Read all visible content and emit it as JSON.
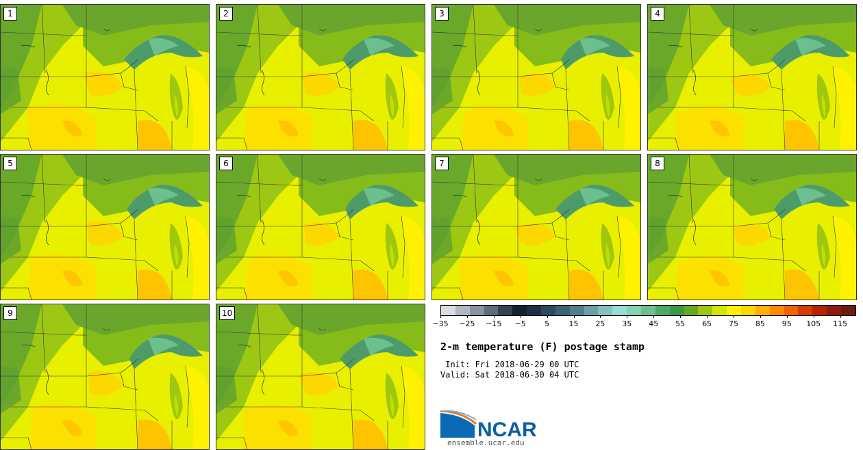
{
  "panels": [
    {
      "label": "1"
    },
    {
      "label": "2"
    },
    {
      "label": "3"
    },
    {
      "label": "4"
    },
    {
      "label": "5"
    },
    {
      "label": "6"
    },
    {
      "label": "7"
    },
    {
      "label": "8"
    },
    {
      "label": "9"
    },
    {
      "label": "10"
    }
  ],
  "colorbar": {
    "colors": [
      "#d9dde3",
      "#b3b9c2",
      "#8a93a0",
      "#5f6b7c",
      "#344155",
      "#141f33",
      "#1d2f45",
      "#2c4a5e",
      "#3d6475",
      "#4f7f8c",
      "#6aa0a7",
      "#86bfbf",
      "#9adbd2",
      "#84d2b0",
      "#6cbf8f",
      "#4fa86a",
      "#3b9845",
      "#6aa81e",
      "#9ec70e",
      "#d4e600",
      "#fff200",
      "#ffd800",
      "#ffb100",
      "#ff8a00",
      "#f06400",
      "#d83a00",
      "#b82200",
      "#8e1a12",
      "#6e1a12"
    ],
    "tick_labels": [
      "−35",
      "−25",
      "−15",
      "−5",
      "5",
      "15",
      "25",
      "35",
      "45",
      "55",
      "65",
      "75",
      "85",
      "95",
      "105",
      "115"
    ]
  },
  "title": "2-m temperature (F) postage stamp",
  "init": " Init: Fri 2018-06-29 00 UTC",
  "valid": "Valid: Sat 2018-06-30 04 UTC",
  "logo": {
    "text": "NCAR",
    "url": "ensemble.ucar.edu"
  }
}
